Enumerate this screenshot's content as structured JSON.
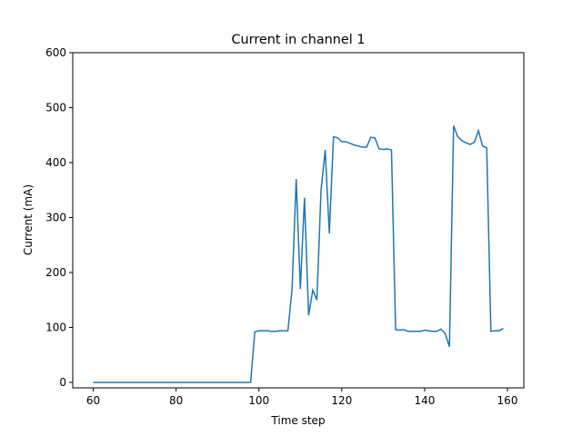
{
  "chart_data": {
    "type": "line",
    "title": "Current in channel 1",
    "x_label": "Time step",
    "y_label": "Current (mA)",
    "x": [
      60,
      61,
      62,
      63,
      64,
      65,
      66,
      67,
      68,
      69,
      70,
      71,
      72,
      73,
      74,
      75,
      76,
      77,
      78,
      79,
      80,
      81,
      82,
      83,
      84,
      85,
      86,
      87,
      88,
      89,
      90,
      91,
      92,
      93,
      94,
      95,
      96,
      97,
      98,
      99,
      100,
      101,
      102,
      103,
      104,
      105,
      106,
      107,
      108,
      109,
      110,
      111,
      112,
      113,
      114,
      115,
      116,
      117,
      118,
      119,
      120,
      121,
      122,
      123,
      124,
      125,
      126,
      127,
      128,
      129,
      130,
      131,
      132,
      133,
      134,
      135,
      136,
      137,
      138,
      139,
      140,
      141,
      142,
      143,
      144,
      145,
      146,
      147,
      148,
      149,
      150,
      151,
      152,
      153,
      154,
      155,
      156,
      157,
      158,
      159
    ],
    "series": [
      {
        "name": "Current",
        "color": "#1f77b4",
        "values": [
          0,
          0,
          0,
          0,
          0,
          0,
          0,
          0,
          0,
          0,
          0,
          0,
          0,
          0,
          0,
          0,
          0,
          0,
          0,
          0,
          0,
          0,
          0,
          0,
          0,
          0,
          0,
          0,
          0,
          0,
          0,
          0,
          0,
          0,
          0,
          0,
          0,
          0,
          0,
          92,
          94,
          94,
          94,
          93,
          93,
          94,
          94,
          94,
          170,
          370,
          170,
          336,
          122,
          168,
          150,
          350,
          423,
          271,
          447,
          445,
          438,
          438,
          435,
          432,
          430,
          428,
          428,
          446,
          445,
          425,
          424,
          425,
          423,
          96,
          95,
          96,
          93,
          93,
          93,
          93,
          95,
          94,
          93,
          93,
          97,
          88,
          65,
          467,
          447,
          440,
          436,
          433,
          437,
          458,
          430,
          427,
          93,
          94,
          94,
          98
        ]
      }
    ],
    "xlim": [
      55.05,
      163.95
    ],
    "ylim": [
      -10,
      600
    ],
    "xticks": [
      60,
      80,
      100,
      120,
      140,
      160
    ],
    "yticks": [
      0,
      100,
      200,
      300,
      400,
      500,
      600
    ]
  }
}
